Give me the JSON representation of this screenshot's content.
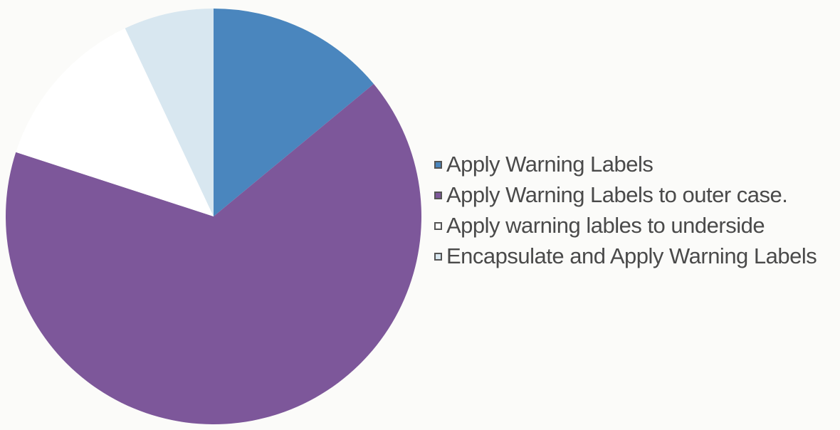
{
  "chart_data": {
    "type": "pie",
    "title": "",
    "start": "12 o'clock, clockwise",
    "slices": [
      {
        "label": "Apply Warning Labels",
        "value": 14,
        "color": "#4a86be"
      },
      {
        "label": "Apply Warning Labels to outer case.",
        "value": 66,
        "color": "#7d579a"
      },
      {
        "label": "Apply warning lables to underside",
        "value": 13,
        "color": "#ffffff"
      },
      {
        "label": "Encapsulate and Apply Warning Labels",
        "value": 7,
        "color": "#d8e7f0"
      }
    ],
    "legend_position": "right"
  },
  "legend": {
    "items": [
      {
        "label": "Apply Warning Labels",
        "color": "#4a86be"
      },
      {
        "label": "Apply Warning Labels to outer case.",
        "color": "#7d579a"
      },
      {
        "label": "Apply warning lables to underside",
        "color": "#ffffff"
      },
      {
        "label": "Encapsulate and Apply Warning Labels",
        "color": "#d8e7f0"
      }
    ]
  }
}
